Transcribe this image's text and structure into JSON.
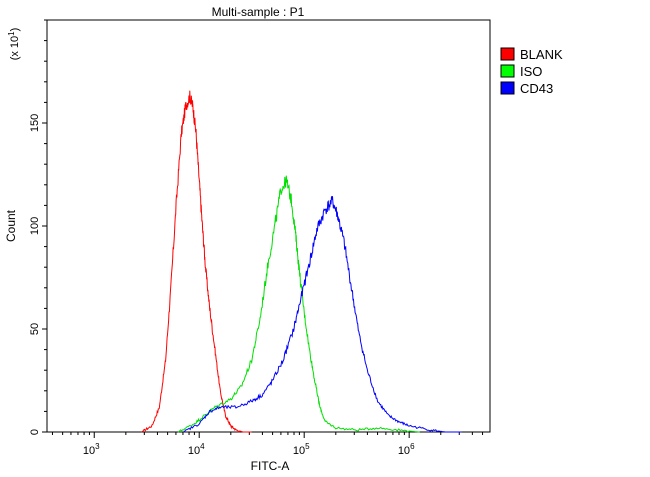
{
  "chart_data": {
    "type": "line",
    "title": "Multi-sample : P1",
    "xlabel": "FITC-A",
    "ylabel": "Count",
    "y_scale_note": "(x 10",
    "y_scale_exp": "1",
    "x_scale": "log",
    "xlim_log10": [
      2.55,
      6.77
    ],
    "ylim": [
      0,
      200
    ],
    "x_ticks": [
      {
        "base": "10",
        "exp": "3",
        "log": 3
      },
      {
        "base": "10",
        "exp": "4",
        "log": 4
      },
      {
        "base": "10",
        "exp": "5",
        "log": 5
      },
      {
        "base": "10",
        "exp": "6",
        "log": 6
      }
    ],
    "y_ticks": [
      {
        "label": "0",
        "value": 0
      },
      {
        "label": "50",
        "value": 50
      },
      {
        "label": "100",
        "value": 100
      },
      {
        "label": "150",
        "value": 150
      }
    ],
    "legend_position": "top-right",
    "series": [
      {
        "name": "BLANK",
        "color": "#ff0000",
        "legend_color": "#ff0000",
        "log_x": [
          3.45,
          3.55,
          3.62,
          3.68,
          3.73,
          3.78,
          3.83,
          3.87,
          3.91,
          3.94,
          3.97,
          4.0,
          4.03,
          4.06,
          4.1,
          4.15,
          4.2,
          4.25,
          4.3,
          4.35,
          4.42,
          4.5
        ],
        "values": [
          0,
          3,
          12,
          35,
          70,
          110,
          145,
          158,
          163,
          158,
          145,
          122,
          100,
          80,
          60,
          40,
          20,
          8,
          3,
          1,
          0,
          0
        ]
      },
      {
        "name": "ISO",
        "color": "#00e000",
        "legend_color": "#00ff00",
        "log_x": [
          3.8,
          3.95,
          4.05,
          4.15,
          4.3,
          4.4,
          4.5,
          4.58,
          4.65,
          4.72,
          4.78,
          4.83,
          4.88,
          4.92,
          4.95,
          5.0,
          5.05,
          5.1,
          5.15,
          5.2,
          5.3,
          5.5,
          5.7,
          5.9,
          6.1
        ],
        "values": [
          0,
          4,
          8,
          12,
          16,
          22,
          35,
          55,
          80,
          100,
          118,
          122,
          112,
          95,
          80,
          58,
          40,
          25,
          12,
          5,
          2,
          1,
          2,
          1,
          0
        ]
      },
      {
        "name": "CD43",
        "color": "#0000ff",
        "legend_color": "#0000ff",
        "log_x": [
          3.85,
          4.0,
          4.1,
          4.2,
          4.35,
          4.5,
          4.6,
          4.7,
          4.8,
          4.9,
          4.97,
          5.05,
          5.12,
          5.2,
          5.27,
          5.32,
          5.38,
          5.45,
          5.52,
          5.6,
          5.7,
          5.8,
          5.9,
          6.0,
          6.2,
          6.35,
          6.5
        ],
        "values": [
          0,
          4,
          10,
          12,
          12,
          15,
          18,
          25,
          35,
          50,
          65,
          82,
          98,
          108,
          112,
          105,
          92,
          70,
          48,
          30,
          15,
          8,
          5,
          3,
          1,
          0,
          0
        ]
      }
    ]
  }
}
